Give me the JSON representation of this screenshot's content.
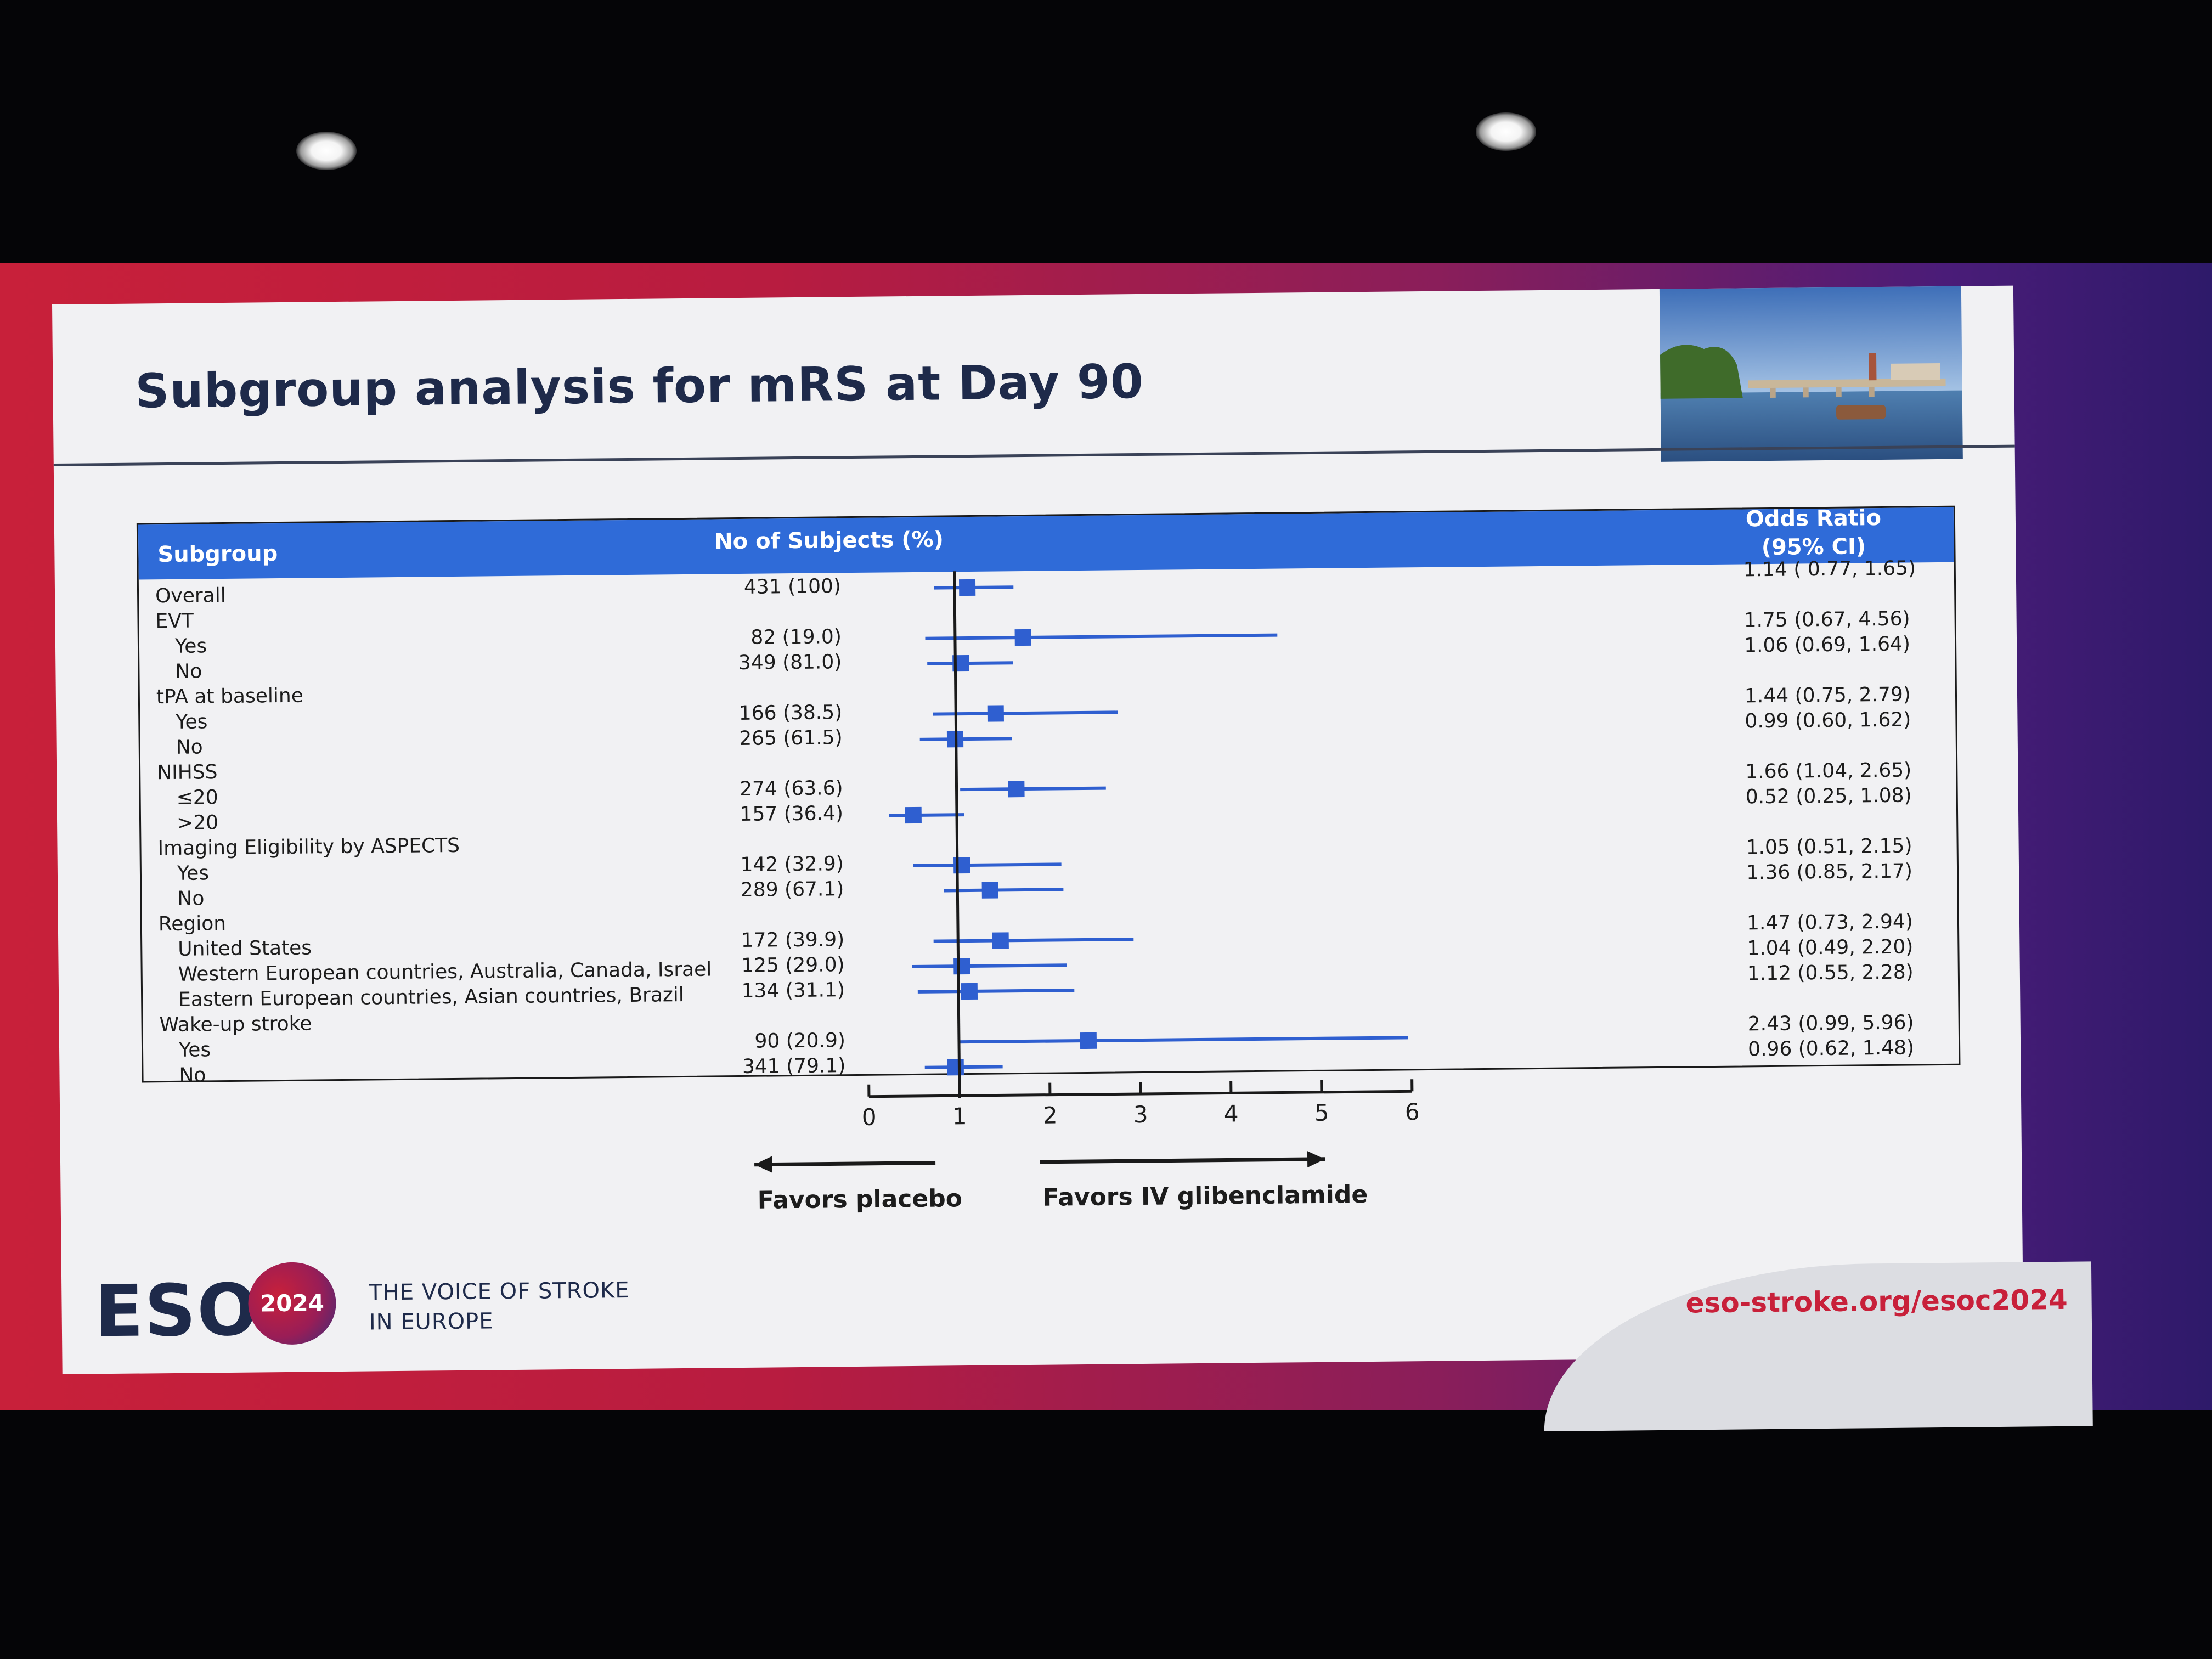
{
  "slide": {
    "title": "Subgroup analysis for mRS at Day 90",
    "footer": {
      "logo_text": "ESOC",
      "logo_year": "2024",
      "tagline": "THE VOICE OF STROKE\nIN EUROPE",
      "url": "eso-stroke.org/esoc2024"
    }
  },
  "colors": {
    "header_blue": "#2f6bd8",
    "marker_blue": "#2f5fd0",
    "title_navy": "#1e2a4a",
    "brand_red": "#c8203a"
  },
  "chart_data": {
    "type": "forest",
    "headers": {
      "subgroup": "Subgroup",
      "subjects": "No of Subjects (%)",
      "odds_ratio": "Odds Ratio\n(95% CI)"
    },
    "rows": [
      {
        "label": "Overall",
        "n": "431 (100)",
        "or_text": "1.14 ( 0.77, 1.65)",
        "or": 1.14,
        "lo": 0.77,
        "hi": 1.65,
        "indent": 0
      },
      {
        "label": "EVT",
        "header": true,
        "indent": 0
      },
      {
        "label": "Yes",
        "n": "82 (19.0)",
        "or_text": "1.75 (0.67, 4.56)",
        "or": 1.75,
        "lo": 0.67,
        "hi": 4.56,
        "indent": 1
      },
      {
        "label": "No",
        "n": "349 (81.0)",
        "or_text": "1.06 (0.69, 1.64)",
        "or": 1.06,
        "lo": 0.69,
        "hi": 1.64,
        "indent": 1
      },
      {
        "label": "tPA at baseline",
        "header": true,
        "indent": 0
      },
      {
        "label": "Yes",
        "n": "166 (38.5)",
        "or_text": "1.44 (0.75, 2.79)",
        "or": 1.44,
        "lo": 0.75,
        "hi": 2.79,
        "indent": 1
      },
      {
        "label": "No",
        "n": "265 (61.5)",
        "or_text": "0.99 (0.60, 1.62)",
        "or": 0.99,
        "lo": 0.6,
        "hi": 1.62,
        "indent": 1
      },
      {
        "label": "NIHSS",
        "header": true,
        "indent": 0
      },
      {
        "label": "≤20",
        "n": "274 (63.6)",
        "or_text": "1.66 (1.04, 2.65)",
        "or": 1.66,
        "lo": 1.04,
        "hi": 2.65,
        "indent": 1
      },
      {
        "label": ">20",
        "n": "157 (36.4)",
        "or_text": "0.52 (0.25, 1.08)",
        "or": 0.52,
        "lo": 0.25,
        "hi": 1.08,
        "indent": 1
      },
      {
        "label": "Imaging Eligibility by ASPECTS",
        "header": true,
        "indent": 0
      },
      {
        "label": "Yes",
        "n": "142 (32.9)",
        "or_text": "1.05 (0.51, 2.15)",
        "or": 1.05,
        "lo": 0.51,
        "hi": 2.15,
        "indent": 1
      },
      {
        "label": "No",
        "n": "289 (67.1)",
        "or_text": "1.36 (0.85, 2.17)",
        "or": 1.36,
        "lo": 0.85,
        "hi": 2.17,
        "indent": 1
      },
      {
        "label": "Region",
        "header": true,
        "indent": 0
      },
      {
        "label": "United States",
        "n": "172 (39.9)",
        "or_text": "1.47 (0.73, 2.94)",
        "or": 1.47,
        "lo": 0.73,
        "hi": 2.94,
        "indent": 1
      },
      {
        "label": "Western European countries, Australia, Canada, Israel",
        "n": "125 (29.0)",
        "or_text": "1.04 (0.49, 2.20)",
        "or": 1.04,
        "lo": 0.49,
        "hi": 2.2,
        "indent": 1
      },
      {
        "label": "Eastern European countries, Asian countries, Brazil",
        "n": "134 (31.1)",
        "or_text": "1.12 (0.55, 2.28)",
        "or": 1.12,
        "lo": 0.55,
        "hi": 2.28,
        "indent": 1
      },
      {
        "label": "Wake-up stroke",
        "header": true,
        "indent": 0
      },
      {
        "label": "Yes",
        "n": "90 (20.9)",
        "or_text": "2.43 (0.99, 5.96)",
        "or": 2.43,
        "lo": 0.99,
        "hi": 5.96,
        "indent": 1
      },
      {
        "label": "No",
        "n": "341 (79.1)",
        "or_text": "0.96 (0.62, 1.48)",
        "or": 0.96,
        "lo": 0.62,
        "hi": 1.48,
        "indent": 1
      }
    ],
    "x_ticks": [
      "0",
      "1",
      "2",
      "3",
      "4",
      "5",
      "6"
    ],
    "xlim": [
      0,
      6
    ],
    "reference_line": 1,
    "favors_left": "Favors placebo",
    "favors_right": "Favors IV glibenclamide"
  }
}
